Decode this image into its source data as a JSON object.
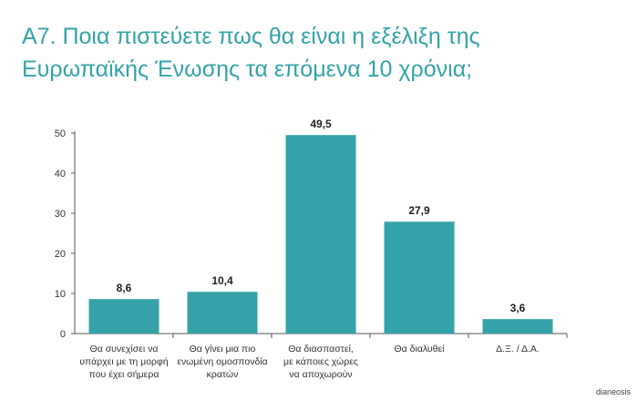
{
  "title_lines": [
    "Α7. Ποια πιστεύετε πως θα είναι η εξέλιξη της",
    "Ευρωπαϊκής Ένωσης τα επόμενα 10 χρόνια;"
  ],
  "source": "dianeosis",
  "colors": {
    "bar": "#34a3a9",
    "title": "#34a3a9",
    "axis": "#555555"
  },
  "chart_data": {
    "type": "bar",
    "title": "Α7. Ποια πιστεύετε πως θα είναι η εξέλιξη της Ευρωπαϊκής Ένωσης τα επόμενα 10 χρόνια;",
    "categories": [
      [
        "Θα συνεχίσει να",
        "υπάρχει με τη μορφή",
        "που έχει σήμερα"
      ],
      [
        "Θα γίνει μια πιο",
        "ενωμένη ομοσπονδία",
        "κρατών"
      ],
      [
        "Θα διασπαστεί,",
        "με κάποιες χώρες",
        "να αποχωρούν"
      ],
      [
        "Θα διαλυθεί"
      ],
      [
        "Δ.Ξ. / Δ.Α."
      ]
    ],
    "values": [
      8.6,
      10.4,
      49.5,
      27.9,
      3.6
    ],
    "value_labels": [
      "8,6",
      "10,4",
      "49,5",
      "27,9",
      "3,6"
    ],
    "y_ticks": [
      0,
      10,
      20,
      30,
      40,
      50
    ],
    "ylim": [
      0,
      50
    ],
    "xlabel": "",
    "ylabel": "",
    "grid": false,
    "legend": "none"
  }
}
